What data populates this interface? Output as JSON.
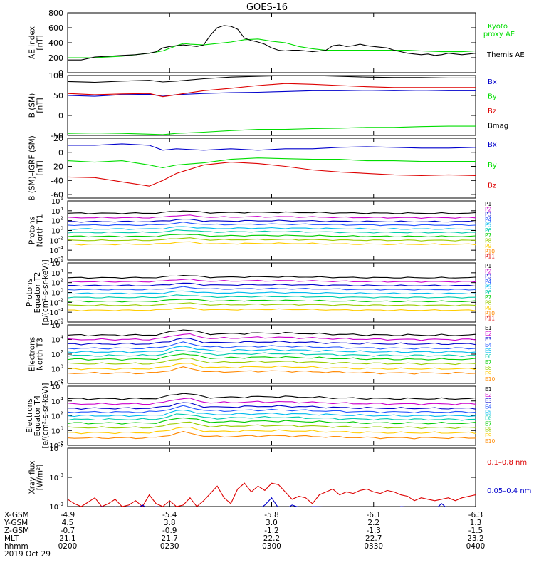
{
  "title": "GOES-16",
  "footer": {
    "date": "2019 Oct 29",
    "row_labels": [
      "X-GSM",
      "Y-GSM",
      "Z-GSM",
      "MLT",
      "hhmm"
    ],
    "rows": [
      [
        "-4.9",
        "-5.4",
        "-5.8",
        "-6.1",
        "-6.3"
      ],
      [
        "4.5",
        "3.8",
        "3.0",
        "2.2",
        "1.3"
      ],
      [
        "-0.7",
        "-0.9",
        "-1.2",
        "-1.3",
        "-1.5"
      ],
      [
        "21.1",
        "21.7",
        "22.2",
        "22.7",
        "23.2"
      ],
      [
        "0200",
        "0230",
        "0300",
        "0330",
        "0400"
      ]
    ]
  },
  "colors": {
    "black": "#000000",
    "green": "#00dd00",
    "red": "#dd0000",
    "blue": "#0000cc",
    "ch": [
      "#000000",
      "#cc00cc",
      "#0000cc",
      "#2255ff",
      "#00bbee",
      "#00ccaa",
      "#00cc00",
      "#99cc00",
      "#ffcc00",
      "#ff8800",
      "#dd0000"
    ]
  },
  "chart_data": [
    {
      "type": "line",
      "ylabel": [
        "AE index",
        "[nT]"
      ],
      "ylim": [
        0,
        800
      ],
      "yticks": [
        "0",
        "200",
        "400",
        "600",
        "800"
      ],
      "legend": [
        "Kyoto",
        "proxy AE",
        "Themis AE"
      ],
      "series": [
        {
          "name": "Kyoto proxy AE",
          "x": [
            0,
            8,
            16,
            20,
            24,
            28,
            32,
            34,
            36,
            40,
            44,
            48,
            52,
            56,
            60,
            64,
            68,
            72,
            76,
            80,
            84,
            88,
            92,
            96,
            100,
            104,
            110,
            116,
            120
          ],
          "values": [
            200,
            200,
            220,
            240,
            260,
            290,
            360,
            390,
            380,
            370,
            390,
            410,
            440,
            450,
            420,
            400,
            350,
            320,
            300,
            300,
            300,
            300,
            300,
            300,
            300,
            290,
            280,
            280,
            290
          ]
        },
        {
          "name": "Themis AE",
          "x": [
            0,
            4,
            8,
            12,
            16,
            20,
            24,
            26,
            28,
            30,
            32,
            34,
            36,
            38,
            40,
            42,
            44,
            46,
            48,
            50,
            52,
            54,
            56,
            58,
            60,
            62,
            64,
            66,
            68,
            70,
            72,
            74,
            76,
            78,
            80,
            82,
            84,
            86,
            88,
            90,
            92,
            94,
            96,
            98,
            100,
            102,
            104,
            106,
            108,
            110,
            112,
            114,
            116,
            118,
            120
          ],
          "values": [
            170,
            170,
            210,
            220,
            230,
            240,
            260,
            280,
            330,
            350,
            360,
            370,
            360,
            350,
            370,
            500,
            600,
            630,
            620,
            580,
            460,
            430,
            410,
            380,
            330,
            300,
            290,
            300,
            300,
            290,
            280,
            290,
            300,
            360,
            370,
            350,
            360,
            380,
            360,
            350,
            340,
            330,
            300,
            280,
            260,
            250,
            240,
            250,
            230,
            240,
            260,
            250,
            240,
            250,
            260
          ]
        }
      ]
    },
    {
      "type": "line",
      "ylabel": [
        "B (SM)",
        "[nT]"
      ],
      "ylim": [
        -50,
        100
      ],
      "yticks": [
        "-50",
        "0",
        "50",
        "100"
      ],
      "legend": [
        "Bx",
        "By",
        "Bz",
        "Bmag"
      ],
      "series": [
        {
          "name": "Bx",
          "x": [
            0,
            8,
            16,
            24,
            28,
            32,
            40,
            48,
            56,
            64,
            72,
            80,
            88,
            96,
            104,
            112,
            120
          ],
          "values": [
            50,
            48,
            52,
            53,
            48,
            52,
            55,
            57,
            58,
            60,
            62,
            62,
            63,
            62,
            63,
            62,
            62
          ]
        },
        {
          "name": "By",
          "x": [
            0,
            8,
            16,
            24,
            28,
            32,
            40,
            48,
            56,
            64,
            72,
            80,
            88,
            96,
            104,
            112,
            120
          ],
          "values": [
            -45,
            -44,
            -45,
            -47,
            -48,
            -45,
            -42,
            -38,
            -35,
            -35,
            -33,
            -32,
            -30,
            -30,
            -28,
            -27,
            -27
          ]
        },
        {
          "name": "Bz",
          "x": [
            0,
            8,
            16,
            24,
            28,
            32,
            40,
            48,
            56,
            64,
            72,
            80,
            88,
            96,
            104,
            112,
            120
          ],
          "values": [
            55,
            52,
            54,
            55,
            47,
            52,
            62,
            68,
            75,
            80,
            78,
            75,
            72,
            70,
            70,
            70,
            70
          ]
        },
        {
          "name": "Bmag",
          "x": [
            0,
            8,
            16,
            24,
            28,
            32,
            40,
            48,
            56,
            64,
            72,
            80,
            88,
            96,
            104,
            112,
            120
          ],
          "values": [
            85,
            83,
            86,
            88,
            84,
            86,
            92,
            96,
            98,
            100,
            100,
            98,
            96,
            95,
            95,
            94,
            94
          ]
        }
      ]
    },
    {
      "type": "line",
      "ylabel": [
        "B (SM)–IGRF (SM)",
        "[nT]"
      ],
      "ylim": [
        -65,
        20
      ],
      "yticks": [
        "-60",
        "-40",
        "-20",
        "0",
        "20"
      ],
      "legend": [
        "Bx",
        "By",
        "Bz"
      ],
      "series": [
        {
          "name": "Bx",
          "x": [
            0,
            8,
            16,
            24,
            28,
            32,
            40,
            48,
            56,
            64,
            72,
            80,
            88,
            96,
            104,
            112,
            120
          ],
          "values": [
            10,
            10,
            12,
            10,
            3,
            5,
            3,
            5,
            3,
            5,
            5,
            7,
            8,
            7,
            6,
            6,
            7
          ]
        },
        {
          "name": "By",
          "x": [
            0,
            8,
            16,
            24,
            28,
            32,
            40,
            48,
            56,
            64,
            72,
            80,
            88,
            96,
            104,
            112,
            120
          ],
          "values": [
            -12,
            -14,
            -12,
            -18,
            -22,
            -18,
            -15,
            -10,
            -8,
            -9,
            -10,
            -10,
            -12,
            -12,
            -13,
            -13,
            -13
          ]
        },
        {
          "name": "Bz",
          "x": [
            0,
            8,
            16,
            24,
            28,
            32,
            40,
            48,
            56,
            64,
            72,
            80,
            88,
            96,
            104,
            112,
            120
          ],
          "values": [
            -35,
            -36,
            -42,
            -48,
            -40,
            -30,
            -18,
            -14,
            -16,
            -20,
            -25,
            -28,
            -30,
            -32,
            -33,
            -32,
            -33
          ]
        }
      ]
    },
    {
      "type": "line",
      "log": true,
      "ylabel": [
        "Protons",
        "North T1"
      ],
      "yexp": [
        -6,
        -4,
        -2,
        0,
        2,
        4,
        6
      ],
      "legend": [
        "P1",
        "P2",
        "P3",
        "P4",
        "P5",
        "P6",
        "P7",
        "P8",
        "P9",
        "P10",
        "P11"
      ],
      "series": [
        {
          "name": "P1",
          "base": 3.5
        },
        {
          "name": "P2",
          "base": 2.6
        },
        {
          "name": "P3",
          "base": 1.8
        },
        {
          "name": "P4",
          "base": 1.1
        },
        {
          "name": "P5",
          "base": 0.3
        },
        {
          "name": "P6",
          "base": -0.4
        },
        {
          "name": "P7",
          "base": -1.2
        },
        {
          "name": "P8",
          "base": -2.0
        },
        {
          "name": "P9",
          "base": -2.8
        }
      ]
    },
    {
      "type": "line",
      "log": true,
      "ylabel": [
        "Protons",
        "Equator T2",
        "[p/(cm²-s-sr-keV)]"
      ],
      "yexp": [
        -6,
        -4,
        -2,
        0,
        2,
        4,
        6
      ],
      "legend": [
        "P1",
        "P2",
        "P3",
        "P4",
        "P5",
        "P6",
        "P7",
        "P8",
        "P9",
        "P10",
        "P11"
      ],
      "series": [
        {
          "name": "P1",
          "base": 3.0
        },
        {
          "name": "P2",
          "base": 2.2
        },
        {
          "name": "P3",
          "base": 1.4
        },
        {
          "name": "P4",
          "base": 0.6
        },
        {
          "name": "P5",
          "base": -0.2
        },
        {
          "name": "P6",
          "base": -1.0
        },
        {
          "name": "P7",
          "base": -1.8
        },
        {
          "name": "P8",
          "base": -2.6
        },
        {
          "name": "P9",
          "base": -3.6
        }
      ]
    },
    {
      "type": "line",
      "log": true,
      "ylabel": [
        "Electrons",
        "North T3"
      ],
      "yexp": [
        -2,
        0,
        2,
        4,
        6
      ],
      "legend": [
        "E1",
        "E2",
        "E3",
        "E4",
        "E5",
        "E6",
        "E7",
        "E8",
        "E9",
        "E10"
      ],
      "series": [
        {
          "name": "E1",
          "base": 4.6
        },
        {
          "name": "E2",
          "base": 4.0
        },
        {
          "name": "E3",
          "base": 3.4
        },
        {
          "name": "E4",
          "base": 2.8
        },
        {
          "name": "E5",
          "base": 2.3
        },
        {
          "name": "E6",
          "base": 1.8
        },
        {
          "name": "E7",
          "base": 1.3
        },
        {
          "name": "E8",
          "base": 0.7
        },
        {
          "name": "E9",
          "base": 0.0
        },
        {
          "name": "E10",
          "base": -0.6
        }
      ]
    },
    {
      "type": "line",
      "log": true,
      "ylabel": [
        "Electrons",
        "Equator T4",
        "[e/(cm²-s-sr-keV)]"
      ],
      "yexp": [
        -2,
        0,
        2,
        4,
        6
      ],
      "legend": [
        "E1",
        "E2",
        "E3",
        "E4",
        "E5",
        "E6",
        "E7",
        "E8",
        "E9",
        "E10"
      ],
      "series": [
        {
          "name": "E1",
          "base": 4.3
        },
        {
          "name": "E2",
          "base": 3.6
        },
        {
          "name": "E3",
          "base": 3.0
        },
        {
          "name": "E4",
          "base": 2.5
        },
        {
          "name": "E5",
          "base": 2.0
        },
        {
          "name": "E6",
          "base": 1.5
        },
        {
          "name": "E7",
          "base": 1.0
        },
        {
          "name": "E8",
          "base": 0.4
        },
        {
          "name": "E9",
          "base": -0.3
        },
        {
          "name": "E10",
          "base": -1.0
        }
      ]
    },
    {
      "type": "line",
      "log": true,
      "ylabel": [
        "Xray flux",
        "[W/m²]"
      ],
      "yexp": [
        -9,
        -8,
        -7
      ],
      "legend": [
        "0.1–0.8 nm",
        "0.05–0.4 nm"
      ],
      "series": [
        {
          "name": "0.1–0.8 nm",
          "x": [
            0,
            2,
            4,
            6,
            8,
            10,
            12,
            14,
            16,
            18,
            20,
            22,
            24,
            26,
            28,
            30,
            32,
            34,
            36,
            38,
            40,
            42,
            44,
            46,
            48,
            50,
            52,
            54,
            56,
            58,
            60,
            62,
            64,
            66,
            68,
            70,
            72,
            74,
            76,
            78,
            80,
            82,
            84,
            86,
            88,
            90,
            92,
            94,
            96,
            98,
            100,
            102,
            104,
            106,
            108,
            110,
            112,
            114,
            116,
            118,
            120
          ],
          "values": [
            -8.75,
            -8.9,
            -9.0,
            -8.85,
            -8.7,
            -9.0,
            -8.9,
            -8.75,
            -9.0,
            -8.95,
            -8.8,
            -9.0,
            -8.6,
            -8.9,
            -9.0,
            -8.8,
            -9.0,
            -8.95,
            -8.7,
            -9.0,
            -8.8,
            -8.55,
            -8.3,
            -8.7,
            -8.9,
            -8.4,
            -8.2,
            -8.5,
            -8.3,
            -8.45,
            -8.2,
            -8.25,
            -8.5,
            -8.75,
            -8.65,
            -8.7,
            -8.9,
            -8.6,
            -8.5,
            -8.4,
            -8.6,
            -8.5,
            -8.55,
            -8.45,
            -8.4,
            -8.5,
            -8.55,
            -8.45,
            -8.5,
            -8.6,
            -8.65,
            -8.8,
            -8.7,
            -8.75,
            -8.8,
            -8.75,
            -8.7,
            -8.8,
            -8.7,
            -8.65,
            -8.6
          ]
        },
        {
          "name": "0.05–0.4 nm",
          "x": [
            8,
            10,
            12,
            14,
            16,
            18,
            20,
            22,
            24,
            26,
            28,
            30,
            56,
            58,
            60,
            62,
            64,
            66,
            70,
            72,
            96,
            98,
            108,
            110,
            112
          ],
          "values": [
            -9.1,
            -9.0,
            -9.1,
            -9.0,
            -9.1,
            -9.0,
            -9.1,
            -8.95,
            -9.1,
            -9.0,
            -9.1,
            -9.05,
            -9.1,
            -8.95,
            -8.7,
            -9.05,
            -9.1,
            -8.95,
            -9.1,
            -9.0,
            -9.1,
            -9.0,
            -9.1,
            -8.9,
            -9.1
          ]
        }
      ]
    }
  ]
}
